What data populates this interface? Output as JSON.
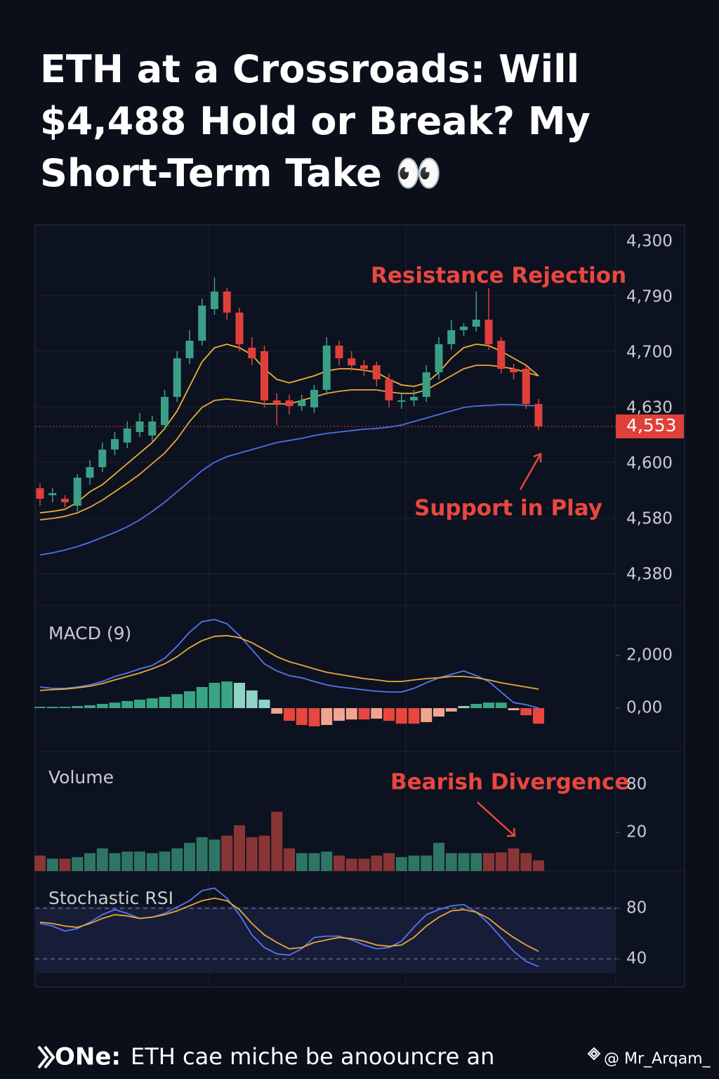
{
  "title": "ETH at a Crossroads: Will $4,488 Hold or Break? My Short-Term Take 👀",
  "chart_data": [
    {
      "type": "candlestick",
      "up_color": "#3a9f86",
      "down_color": "#e0403a",
      "ylim": [
        4300,
        4840
      ],
      "axis_labels": [
        "4,300",
        "4,790",
        "4,700",
        "4,630",
        "4,600",
        "4,580",
        "4,380"
      ],
      "last_price": {
        "value": 4553,
        "label": "4,553"
      },
      "annotations": [
        "Resistance Rejection",
        "Support in Play"
      ],
      "open": [
        4465,
        4455,
        4450,
        4440,
        4480,
        4495,
        4520,
        4530,
        4545,
        4540,
        4555,
        4595,
        4650,
        4675,
        4720,
        4745,
        4715,
        4665,
        4660,
        4590,
        4590,
        4582,
        4580,
        4605,
        4668,
        4650,
        4640,
        4640,
        4620,
        4588,
        4590,
        4595,
        4630,
        4670,
        4690,
        4695,
        4705,
        4675,
        4635,
        4635,
        4585
      ],
      "high": [
        4472,
        4465,
        4455,
        4485,
        4505,
        4530,
        4545,
        4560,
        4572,
        4568,
        4605,
        4660,
        4690,
        4735,
        4765,
        4750,
        4722,
        4680,
        4668,
        4600,
        4598,
        4598,
        4612,
        4680,
        4675,
        4660,
        4648,
        4645,
        4628,
        4600,
        4605,
        4640,
        4680,
        4705,
        4700,
        4745,
        4750,
        4680,
        4642,
        4640,
        4592
      ],
      "low": [
        4440,
        4445,
        4438,
        4432,
        4470,
        4488,
        4512,
        4522,
        4538,
        4532,
        4548,
        4588,
        4642,
        4668,
        4712,
        4705,
        4660,
        4640,
        4580,
        4555,
        4570,
        4575,
        4572,
        4598,
        4640,
        4632,
        4625,
        4610,
        4580,
        4578,
        4582,
        4588,
        4620,
        4662,
        4682,
        4688,
        4662,
        4628,
        4620,
        4578,
        4548
      ],
      "close": [
        4450,
        4458,
        4445,
        4480,
        4495,
        4520,
        4535,
        4550,
        4560,
        4560,
        4595,
        4650,
        4675,
        4725,
        4745,
        4715,
        4670,
        4650,
        4590,
        4585,
        4582,
        4590,
        4605,
        4668,
        4650,
        4640,
        4635,
        4620,
        4590,
        4590,
        4595,
        4630,
        4670,
        4690,
        4695,
        4705,
        4670,
        4635,
        4630,
        4585,
        4553
      ],
      "series": [
        {
          "color": "#f2b233",
          "values": [
            4430,
            4432,
            4435,
            4445,
            4460,
            4470,
            4485,
            4500,
            4515,
            4530,
            4550,
            4575,
            4610,
            4645,
            4665,
            4670,
            4665,
            4655,
            4635,
            4620,
            4615,
            4620,
            4625,
            4632,
            4635,
            4635,
            4633,
            4630,
            4620,
            4612,
            4610,
            4615,
            4630,
            4650,
            4665,
            4670,
            4668,
            4660,
            4650,
            4640,
            4625
          ]
        },
        {
          "color": "#e7a93a",
          "values": [
            4420,
            4422,
            4425,
            4430,
            4438,
            4448,
            4460,
            4472,
            4485,
            4500,
            4515,
            4535,
            4560,
            4580,
            4590,
            4592,
            4590,
            4588,
            4585,
            4585,
            4585,
            4590,
            4595,
            4600,
            4603,
            4605,
            4605,
            4605,
            4602,
            4600,
            4600,
            4605,
            4615,
            4625,
            4635,
            4640,
            4640,
            4638,
            4635,
            4630,
            4625
          ]
        },
        {
          "color": "#4f6fe8",
          "values": [
            4370,
            4373,
            4377,
            4382,
            4388,
            4395,
            4402,
            4410,
            4420,
            4432,
            4445,
            4460,
            4475,
            4490,
            4502,
            4510,
            4515,
            4520,
            4525,
            4530,
            4533,
            4536,
            4540,
            4543,
            4545,
            4547,
            4549,
            4550,
            4552,
            4555,
            4560,
            4565,
            4570,
            4575,
            4580,
            4582,
            4583,
            4584,
            4584,
            4583,
            4582
          ]
        }
      ]
    },
    {
      "type": "macd",
      "label": "MACD (9)",
      "ylim": [
        -1650,
        3810
      ],
      "yticks": [
        {
          "value": 2000,
          "label": "2,000"
        },
        {
          "value": 0,
          "label": "0,00"
        }
      ],
      "histogram_colors": [
        "#3aa584",
        "#8fd3c4",
        "#e8473f",
        "#f2a58e"
      ],
      "histogram": [
        50,
        50,
        50,
        80,
        110,
        160,
        210,
        270,
        320,
        370,
        430,
        530,
        640,
        800,
        960,
        1010,
        960,
        670,
        320,
        -210,
        -480,
        -640,
        -690,
        -640,
        -480,
        -430,
        -430,
        -400,
        -480,
        -590,
        -590,
        -530,
        -320,
        -130,
        80,
        160,
        210,
        210,
        -80,
        -270,
        -590
      ],
      "series": [
        {
          "color": "#5577ee",
          "values": [
            800,
            750,
            750,
            800,
            880,
            1010,
            1200,
            1330,
            1490,
            1620,
            1890,
            2350,
            2880,
            3280,
            3360,
            3200,
            2750,
            2220,
            1680,
            1410,
            1230,
            1150,
            1010,
            880,
            800,
            750,
            690,
            640,
            610,
            610,
            750,
            960,
            1150,
            1280,
            1410,
            1230,
            1010,
            610,
            210,
            130,
            0
          ]
        },
        {
          "color": "#e7a93a",
          "values": [
            670,
            700,
            720,
            770,
            830,
            930,
            1070,
            1200,
            1330,
            1490,
            1680,
            1950,
            2290,
            2560,
            2720,
            2750,
            2670,
            2480,
            2220,
            1950,
            1760,
            1630,
            1490,
            1360,
            1280,
            1200,
            1120,
            1070,
            1010,
            1010,
            1070,
            1120,
            1150,
            1200,
            1200,
            1150,
            1070,
            960,
            880,
            800,
            720
          ]
        }
      ]
    },
    {
      "type": "bar",
      "label": "Volume",
      "up_color": "#2f7565",
      "down_color": "#8a3535",
      "ylim": [
        -28.5,
        117
      ],
      "yticks": [
        80,
        20
      ],
      "annotations": [
        "Bearish Divergence"
      ],
      "values": [
        -9,
        -13,
        -13,
        -11,
        -6,
        0,
        -6,
        -4,
        -4,
        -6,
        -4,
        0,
        7,
        14,
        11,
        16,
        29,
        14,
        16,
        46,
        0,
        -6,
        -6,
        -4,
        -9,
        -13,
        -13,
        -9,
        -6,
        -11,
        -9,
        -9,
        7,
        -6,
        -6,
        -6,
        -6,
        -5,
        0,
        -6,
        -15
      ]
    },
    {
      "type": "line",
      "label": "Stochastic RSI",
      "ylim": [
        17.8,
        106.7
      ],
      "yticks": [
        80,
        40
      ],
      "series": [
        {
          "color": "#5577ee",
          "values": [
            68,
            66,
            62,
            64,
            69,
            75,
            79,
            76,
            72,
            73,
            76,
            81,
            86,
            94,
            96,
            88,
            75,
            59,
            49,
            44,
            43,
            48,
            57,
            58,
            58,
            55,
            51,
            48,
            49,
            54,
            65,
            75,
            79,
            82,
            83,
            77,
            68,
            57,
            46,
            38,
            34
          ]
        },
        {
          "color": "#e7a93a",
          "values": [
            69,
            68,
            66,
            65,
            68,
            72,
            75,
            74,
            72,
            73,
            75,
            78,
            82,
            86,
            88,
            86,
            79,
            68,
            59,
            53,
            48,
            49,
            53,
            55,
            57,
            56,
            54,
            51,
            50,
            51,
            57,
            66,
            73,
            78,
            79,
            77,
            72,
            64,
            57,
            51,
            46
          ]
        }
      ]
    }
  ],
  "footer": {
    "lead": "ONe:",
    "text": "ETH cae miche be anoouncre an",
    "handle": "@ Mr_Arqam_"
  }
}
